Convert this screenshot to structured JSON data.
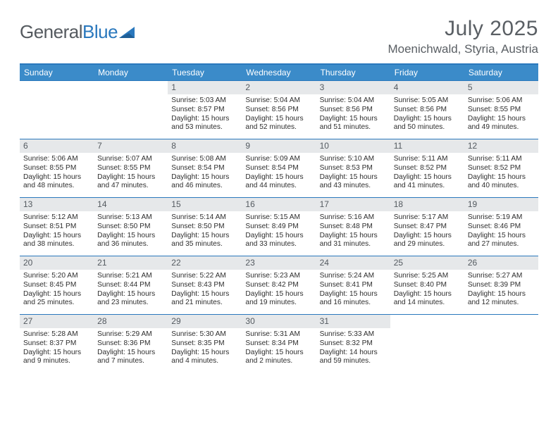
{
  "brand": {
    "name_gray": "General",
    "name_blue": "Blue"
  },
  "title": {
    "month": "July 2025",
    "location": "Moenichwald, Styria, Austria"
  },
  "colors": {
    "header_bar": "#3b8bc9",
    "week_border": "#2a78bd",
    "daynum_bg": "#e6e8ea",
    "text_dark": "#333333",
    "text_muted": "#5a5f64"
  },
  "weekdays": [
    "Sunday",
    "Monday",
    "Tuesday",
    "Wednesday",
    "Thursday",
    "Friday",
    "Saturday"
  ],
  "weeks": [
    [
      null,
      null,
      {
        "n": "1",
        "sr": "5:03 AM",
        "ss": "8:57 PM",
        "dl": "15 hours and 53 minutes."
      },
      {
        "n": "2",
        "sr": "5:04 AM",
        "ss": "8:56 PM",
        "dl": "15 hours and 52 minutes."
      },
      {
        "n": "3",
        "sr": "5:04 AM",
        "ss": "8:56 PM",
        "dl": "15 hours and 51 minutes."
      },
      {
        "n": "4",
        "sr": "5:05 AM",
        "ss": "8:56 PM",
        "dl": "15 hours and 50 minutes."
      },
      {
        "n": "5",
        "sr": "5:06 AM",
        "ss": "8:55 PM",
        "dl": "15 hours and 49 minutes."
      }
    ],
    [
      {
        "n": "6",
        "sr": "5:06 AM",
        "ss": "8:55 PM",
        "dl": "15 hours and 48 minutes."
      },
      {
        "n": "7",
        "sr": "5:07 AM",
        "ss": "8:55 PM",
        "dl": "15 hours and 47 minutes."
      },
      {
        "n": "8",
        "sr": "5:08 AM",
        "ss": "8:54 PM",
        "dl": "15 hours and 46 minutes."
      },
      {
        "n": "9",
        "sr": "5:09 AM",
        "ss": "8:54 PM",
        "dl": "15 hours and 44 minutes."
      },
      {
        "n": "10",
        "sr": "5:10 AM",
        "ss": "8:53 PM",
        "dl": "15 hours and 43 minutes."
      },
      {
        "n": "11",
        "sr": "5:11 AM",
        "ss": "8:52 PM",
        "dl": "15 hours and 41 minutes."
      },
      {
        "n": "12",
        "sr": "5:11 AM",
        "ss": "8:52 PM",
        "dl": "15 hours and 40 minutes."
      }
    ],
    [
      {
        "n": "13",
        "sr": "5:12 AM",
        "ss": "8:51 PM",
        "dl": "15 hours and 38 minutes."
      },
      {
        "n": "14",
        "sr": "5:13 AM",
        "ss": "8:50 PM",
        "dl": "15 hours and 36 minutes."
      },
      {
        "n": "15",
        "sr": "5:14 AM",
        "ss": "8:50 PM",
        "dl": "15 hours and 35 minutes."
      },
      {
        "n": "16",
        "sr": "5:15 AM",
        "ss": "8:49 PM",
        "dl": "15 hours and 33 minutes."
      },
      {
        "n": "17",
        "sr": "5:16 AM",
        "ss": "8:48 PM",
        "dl": "15 hours and 31 minutes."
      },
      {
        "n": "18",
        "sr": "5:17 AM",
        "ss": "8:47 PM",
        "dl": "15 hours and 29 minutes."
      },
      {
        "n": "19",
        "sr": "5:19 AM",
        "ss": "8:46 PM",
        "dl": "15 hours and 27 minutes."
      }
    ],
    [
      {
        "n": "20",
        "sr": "5:20 AM",
        "ss": "8:45 PM",
        "dl": "15 hours and 25 minutes."
      },
      {
        "n": "21",
        "sr": "5:21 AM",
        "ss": "8:44 PM",
        "dl": "15 hours and 23 minutes."
      },
      {
        "n": "22",
        "sr": "5:22 AM",
        "ss": "8:43 PM",
        "dl": "15 hours and 21 minutes."
      },
      {
        "n": "23",
        "sr": "5:23 AM",
        "ss": "8:42 PM",
        "dl": "15 hours and 19 minutes."
      },
      {
        "n": "24",
        "sr": "5:24 AM",
        "ss": "8:41 PM",
        "dl": "15 hours and 16 minutes."
      },
      {
        "n": "25",
        "sr": "5:25 AM",
        "ss": "8:40 PM",
        "dl": "15 hours and 14 minutes."
      },
      {
        "n": "26",
        "sr": "5:27 AM",
        "ss": "8:39 PM",
        "dl": "15 hours and 12 minutes."
      }
    ],
    [
      {
        "n": "27",
        "sr": "5:28 AM",
        "ss": "8:37 PM",
        "dl": "15 hours and 9 minutes."
      },
      {
        "n": "28",
        "sr": "5:29 AM",
        "ss": "8:36 PM",
        "dl": "15 hours and 7 minutes."
      },
      {
        "n": "29",
        "sr": "5:30 AM",
        "ss": "8:35 PM",
        "dl": "15 hours and 4 minutes."
      },
      {
        "n": "30",
        "sr": "5:31 AM",
        "ss": "8:34 PM",
        "dl": "15 hours and 2 minutes."
      },
      {
        "n": "31",
        "sr": "5:33 AM",
        "ss": "8:32 PM",
        "dl": "14 hours and 59 minutes."
      },
      null,
      null
    ]
  ],
  "labels": {
    "sunrise": "Sunrise:",
    "sunset": "Sunset:",
    "daylight": "Daylight:"
  }
}
